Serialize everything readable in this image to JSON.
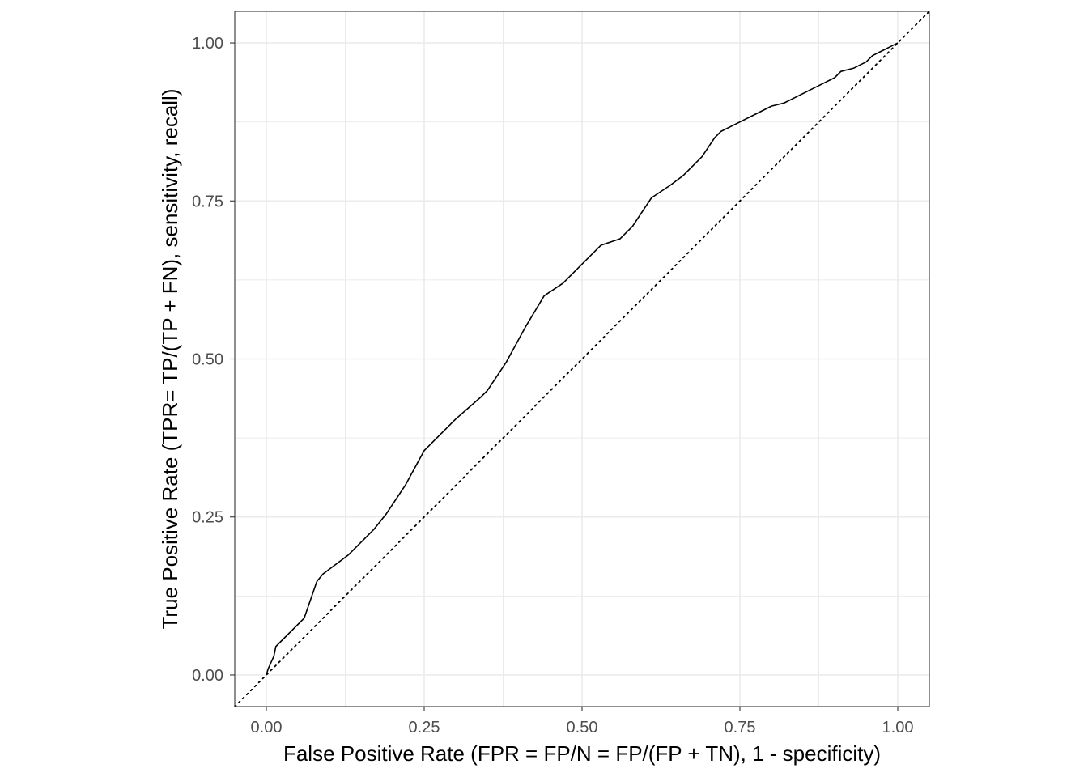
{
  "chart_data": {
    "type": "line",
    "title": "",
    "xlabel": "False Positive Rate (FPR = FP/N = FP/(FP + TN), 1 - specificity)",
    "ylabel": "True Positive Rate (TPR= TP/(TP + FN), sensitivity, recall)",
    "xlim": [
      -0.05,
      1.05
    ],
    "ylim": [
      -0.05,
      1.05
    ],
    "x_ticks": [
      0,
      0.25,
      0.5,
      0.75,
      1
    ],
    "x_tick_labels": [
      "0.00",
      "0.25",
      "0.50",
      "0.75",
      "1.00"
    ],
    "y_ticks": [
      0,
      0.25,
      0.5,
      0.75,
      1
    ],
    "y_tick_labels": [
      "0.00",
      "0.25",
      "0.50",
      "0.75",
      "1.00"
    ],
    "grid": true,
    "legend": "none",
    "colors": {
      "line": "#000000",
      "grid": "#ebebeb",
      "border": "#333333",
      "tick_label": "#4d4d4d"
    },
    "series": [
      {
        "style": "solid",
        "x": [
          0,
          0.003,
          0.012,
          0.015,
          0.025,
          0.04,
          0.06,
          0.08,
          0.09,
          0.13,
          0.17,
          0.19,
          0.22,
          0.25,
          0.27,
          0.3,
          0.34,
          0.35,
          0.38,
          0.41,
          0.44,
          0.47,
          0.48,
          0.5,
          0.53,
          0.56,
          0.58,
          0.61,
          0.64,
          0.66,
          0.69,
          0.71,
          0.72,
          0.74,
          0.77,
          0.8,
          0.82,
          0.84,
          0.87,
          0.9,
          0.91,
          0.93,
          0.95,
          0.96,
          0.97,
          0.98,
          0.99,
          1
        ],
        "y": [
          0,
          0.01,
          0.03,
          0.045,
          0.055,
          0.07,
          0.09,
          0.148,
          0.16,
          0.19,
          0.23,
          0.255,
          0.3,
          0.355,
          0.375,
          0.405,
          0.44,
          0.45,
          0.495,
          0.55,
          0.6,
          0.62,
          0.63,
          0.65,
          0.68,
          0.69,
          0.71,
          0.755,
          0.775,
          0.79,
          0.82,
          0.85,
          0.86,
          0.87,
          0.885,
          0.9,
          0.905,
          0.915,
          0.93,
          0.945,
          0.955,
          0.96,
          0.97,
          0.98,
          0.985,
          0.99,
          0.995,
          1
        ]
      },
      {
        "style": "dotted",
        "x": [
          -0.05,
          1.05
        ],
        "y": [
          -0.05,
          1.05
        ]
      }
    ]
  }
}
